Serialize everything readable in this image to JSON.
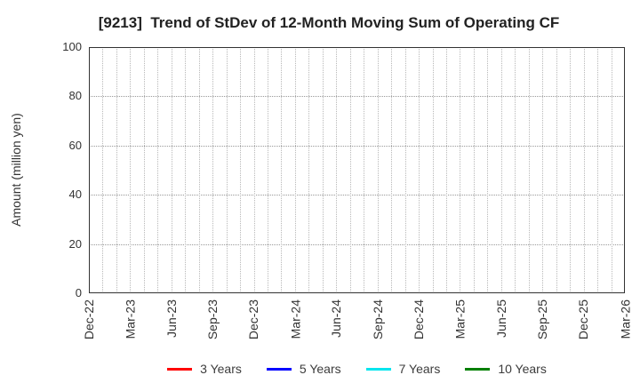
{
  "chart_data": {
    "type": "line",
    "title": "[9213]  Trend of StDev of 12-Month Moving Sum of Operating CF",
    "ylabel": "Amount (million yen)",
    "xlabel": "",
    "ylim": [
      0,
      100
    ],
    "yticks": [
      0,
      20,
      40,
      60,
      80,
      100
    ],
    "x_tick_labels": [
      "Dec-22",
      "Mar-23",
      "Jun-23",
      "Sep-23",
      "Dec-23",
      "Mar-24",
      "Jun-24",
      "Sep-24",
      "Dec-24",
      "Mar-25",
      "Jun-25",
      "Sep-25",
      "Dec-25",
      "Mar-26"
    ],
    "xlim": [
      "Dec-22",
      "Mar-26"
    ],
    "months_per_tick": 3,
    "total_months": 39,
    "grid": true,
    "legend_position": "bottom",
    "series": [
      {
        "name": "3 Years",
        "color": "#ff0000",
        "values": []
      },
      {
        "name": "5 Years",
        "color": "#0000ff",
        "values": []
      },
      {
        "name": "7 Years",
        "color": "#00e5ee",
        "values": []
      },
      {
        "name": "10 Years",
        "color": "#007f00",
        "values": []
      }
    ]
  }
}
